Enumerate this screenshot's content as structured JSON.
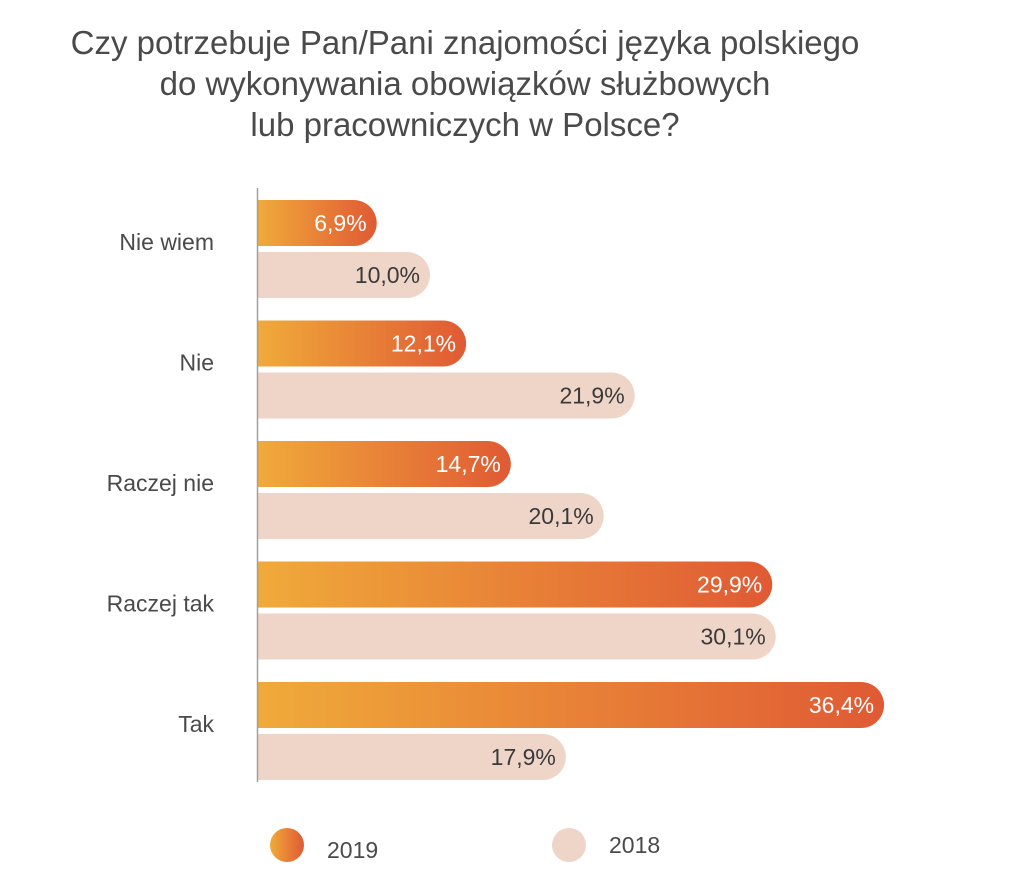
{
  "chart_data": {
    "type": "bar",
    "orientation": "horizontal",
    "title": [
      "Czy potrzebuje Pan/Pani znajomości języka polskiego",
      "do wykonywania obowiązków służbowych",
      "lub pracowniczych w Polsce?"
    ],
    "categories": [
      "Nie wiem",
      "Nie",
      "Raczej nie",
      "Raczej tak",
      "Tak"
    ],
    "series": [
      {
        "name": "2019",
        "values": [
          6.9,
          12.1,
          14.7,
          29.9,
          36.4
        ],
        "labels": [
          "6,9%",
          "12,1%",
          "14,7%",
          "29,9%",
          "36,4%"
        ],
        "color_start": "#f0aa3a",
        "color_end": "#e05a34",
        "label_color": "#ffffff"
      },
      {
        "name": "2018",
        "values": [
          10.0,
          21.9,
          20.1,
          30.1,
          17.9
        ],
        "labels": [
          "10,0%",
          "21,9%",
          "20,1%",
          "30,1%",
          "17,9%"
        ],
        "color": "#efd5c8",
        "label_color": "#3a3a3a"
      }
    ],
    "xlim": [
      0,
      40
    ],
    "grid": false,
    "legend": "bottom",
    "axis_color": "#a0a0a0"
  }
}
